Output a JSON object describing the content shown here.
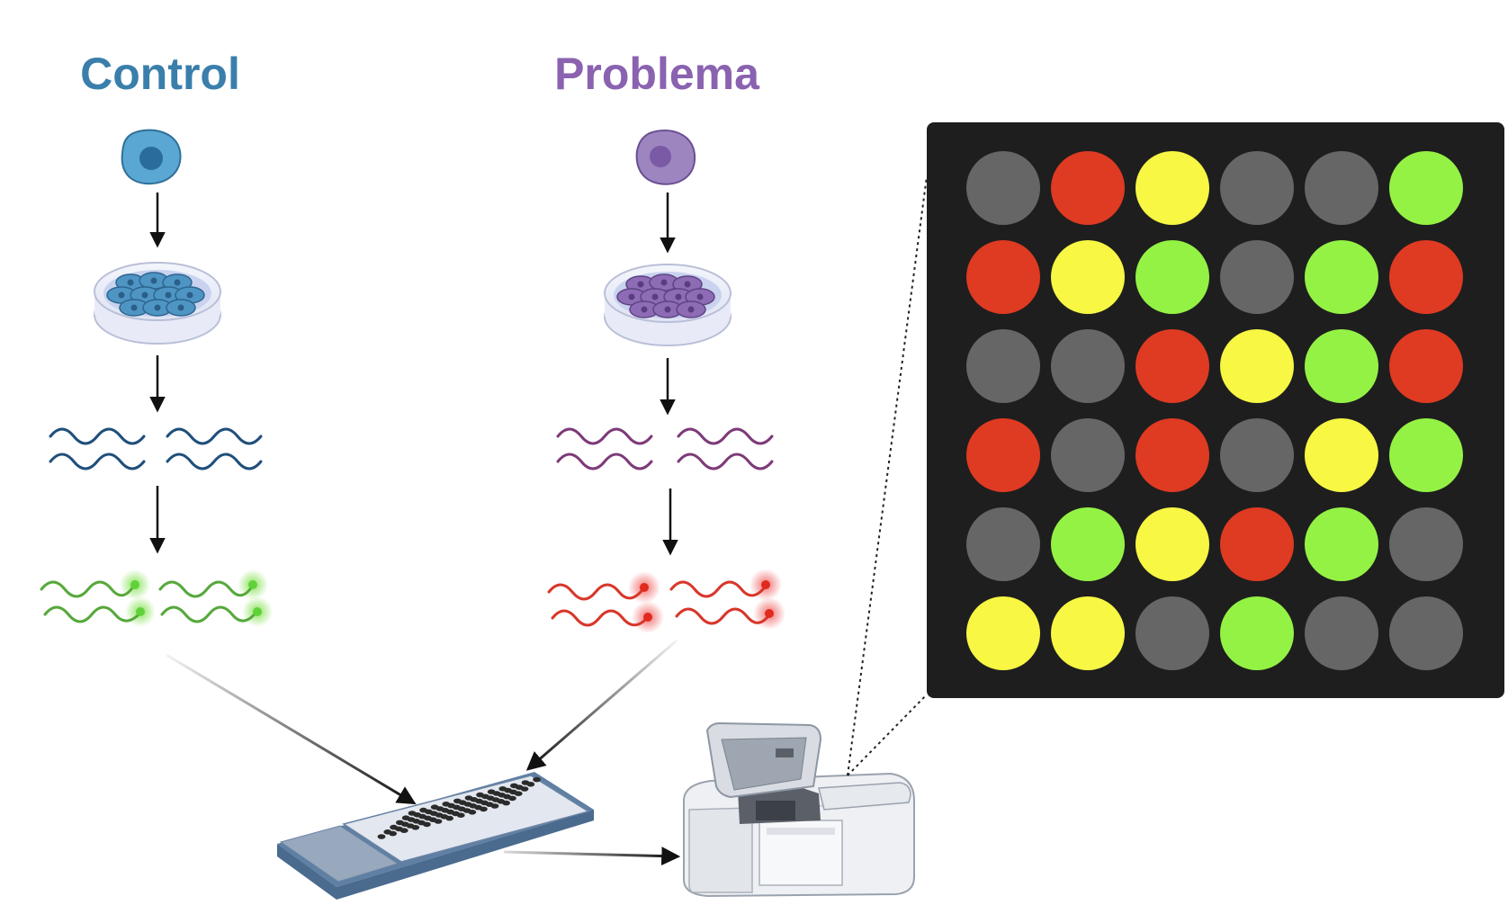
{
  "labels": {
    "control": "Control",
    "problema": "Problema"
  },
  "colors": {
    "control_title": "#3a7fab",
    "problema_title": "#8a62b0",
    "control_cell": "#5aa7d3",
    "problema_cell": "#9d85c0",
    "control_rna": "#1f4f7a",
    "problema_rna": "#7d3a78",
    "label_green": "#56a83a",
    "label_red": "#d8362a",
    "panel_bg": "#1e1e1e"
  },
  "icons": {
    "cell": "cell-icon",
    "petri_dish": "petri-dish-icon",
    "rna": "rna-strands-icon",
    "labeled_cdna": "fluorescent-labeled-cdna-icon",
    "microarray_slide": "microarray-slide-icon",
    "scanner": "microarray-scanner-icon"
  },
  "microarray": {
    "palette": {
      "gray": "#666666",
      "red": "#df3a22",
      "yellow": "#f7f744",
      "green": "#94f245"
    },
    "grid": [
      [
        "gray",
        "red",
        "yellow",
        "gray",
        "gray",
        "green"
      ],
      [
        "red",
        "yellow",
        "green",
        "gray",
        "green",
        "red"
      ],
      [
        "gray",
        "gray",
        "red",
        "yellow",
        "green",
        "red"
      ],
      [
        "red",
        "gray",
        "red",
        "gray",
        "yellow",
        "green"
      ],
      [
        "gray",
        "green",
        "yellow",
        "red",
        "green",
        "gray"
      ],
      [
        "yellow",
        "yellow",
        "gray",
        "green",
        "gray",
        "gray"
      ]
    ]
  }
}
